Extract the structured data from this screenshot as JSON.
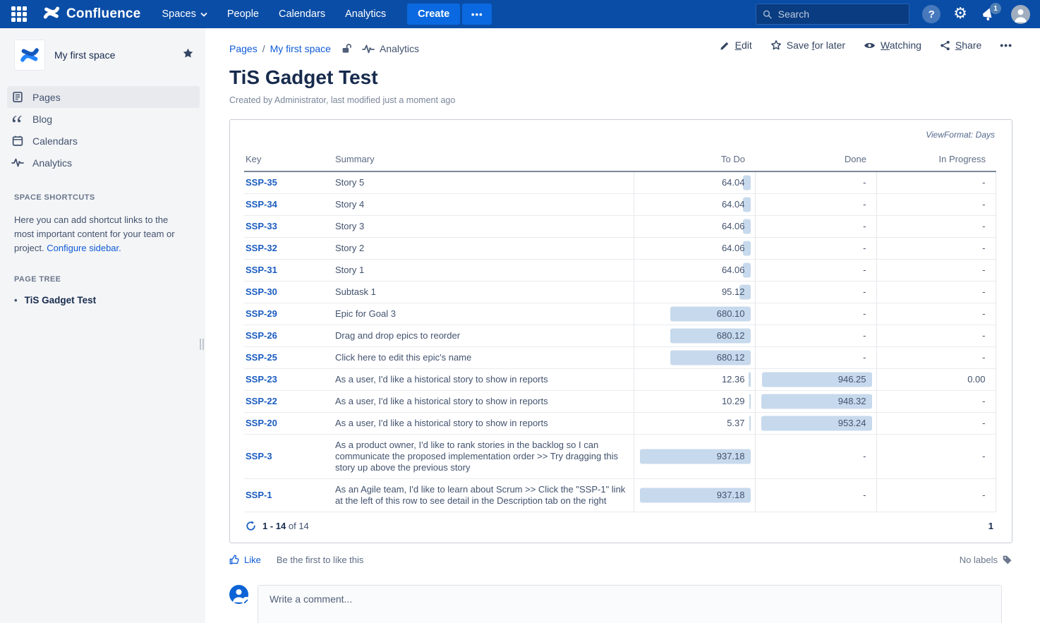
{
  "colors": {
    "nav_bg": "#0A4DA6",
    "nav_button": "#0A69E0",
    "link_blue": "#0E5BD8",
    "key_link": "#1A5CC0",
    "bar_fill": "#C7D9EC",
    "sidebar_bg": "#F4F5F7",
    "title_text": "#172B4D"
  },
  "nav": {
    "brand": "Confluence",
    "items": [
      {
        "label": "Spaces",
        "has_dropdown": true
      },
      {
        "label": "People"
      },
      {
        "label": "Calendars"
      },
      {
        "label": "Analytics"
      }
    ],
    "create_label": "Create",
    "more_label": "•••",
    "search_placeholder": "Search",
    "help_glyph": "?",
    "gear_glyph": "⚙",
    "notification_count": "1"
  },
  "sidebar": {
    "space_name": "My first space",
    "menu": [
      {
        "label": "Pages",
        "icon": "page-icon",
        "selected": true
      },
      {
        "label": "Blog",
        "icon": "blog-icon",
        "selected": false
      },
      {
        "label": "Calendars",
        "icon": "calendar-icon",
        "selected": false
      },
      {
        "label": "Analytics",
        "icon": "analytics-icon",
        "selected": false
      }
    ],
    "shortcuts_title": "SPACE SHORTCUTS",
    "shortcuts_text": "Here you can add shortcut links to the most important content for your team or project. ",
    "configure_link": "Configure sidebar.",
    "tree_title": "PAGE TREE",
    "tree_bullet": "•",
    "tree_item": "TiS Gadget Test"
  },
  "page": {
    "breadcrumbs": [
      {
        "label": "Pages"
      },
      {
        "label": "My first space"
      }
    ],
    "breadcrumb_sep": "/",
    "breadcrumb_analytics": "Analytics",
    "title": "TiS Gadget Test",
    "byline": "Created by Administrator, last modified just a moment ago",
    "actions": {
      "edit": {
        "pre": "",
        "key": "E",
        "post": "dit"
      },
      "save": {
        "pre": "Save ",
        "key": "f",
        "post": "or later"
      },
      "watching": {
        "pre": "",
        "key": "W",
        "post": "atching"
      },
      "share": {
        "pre": "",
        "key": "S",
        "post": "hare"
      },
      "more": "•••"
    }
  },
  "gadget": {
    "view_format": "ViewFormat: Days",
    "columns": {
      "key": "Key",
      "summary": "Summary",
      "to_do": "To Do",
      "done": "Done",
      "in_progress": "In Progress"
    },
    "col_max": {
      "to_do": 937.18,
      "done": 953.24,
      "in_progress": 0
    },
    "rows": [
      {
        "key": "SSP-35",
        "summary": "Story 5",
        "to_do": "64.04",
        "done": "-",
        "in_progress": "-"
      },
      {
        "key": "SSP-34",
        "summary": "Story 4",
        "to_do": "64.04",
        "done": "-",
        "in_progress": "-"
      },
      {
        "key": "SSP-33",
        "summary": "Story 3",
        "to_do": "64.06",
        "done": "-",
        "in_progress": "-"
      },
      {
        "key": "SSP-32",
        "summary": "Story 2",
        "to_do": "64.06",
        "done": "-",
        "in_progress": "-"
      },
      {
        "key": "SSP-31",
        "summary": "Story 1",
        "to_do": "64.06",
        "done": "-",
        "in_progress": "-"
      },
      {
        "key": "SSP-30",
        "summary": "Subtask 1",
        "to_do": "95.12",
        "done": "-",
        "in_progress": "-"
      },
      {
        "key": "SSP-29",
        "summary": "Epic for Goal 3",
        "to_do": "680.10",
        "done": "-",
        "in_progress": "-"
      },
      {
        "key": "SSP-26",
        "summary": "Drag and drop epics to reorder",
        "to_do": "680.12",
        "done": "-",
        "in_progress": "-"
      },
      {
        "key": "SSP-25",
        "summary": "Click here to edit this epic's name",
        "to_do": "680.12",
        "done": "-",
        "in_progress": "-"
      },
      {
        "key": "SSP-23",
        "summary": "As a user, I'd like a historical story to show in reports",
        "to_do": "12.36",
        "done": "946.25",
        "in_progress": "0.00"
      },
      {
        "key": "SSP-22",
        "summary": "As a user, I'd like a historical story to show in reports",
        "to_do": "10.29",
        "done": "948.32",
        "in_progress": "-"
      },
      {
        "key": "SSP-20",
        "summary": "As a user, I'd like a historical story to show in reports",
        "to_do": "5.37",
        "done": "953.24",
        "in_progress": "-"
      },
      {
        "key": "SSP-3",
        "summary": "As a product owner, I'd like to rank stories in the backlog so I can communicate the proposed implementation order >> Try dragging this story up above the previous story",
        "to_do": "937.18",
        "done": "-",
        "in_progress": "-"
      },
      {
        "key": "SSP-1",
        "summary": "As an Agile team, I'd like to learn about Scrum >> Click the \"SSP-1\" link at the left of this row to see detail in the Description tab on the right",
        "to_do": "937.18",
        "done": "-",
        "in_progress": "-"
      }
    ],
    "pagination": {
      "range": "1 - 14",
      "suffix": " of 14",
      "page": "1"
    }
  },
  "social": {
    "like_label": "Like",
    "like_hint": "Be the first to like this",
    "labels_text": "No labels"
  },
  "comment": {
    "placeholder": "Write a comment..."
  }
}
